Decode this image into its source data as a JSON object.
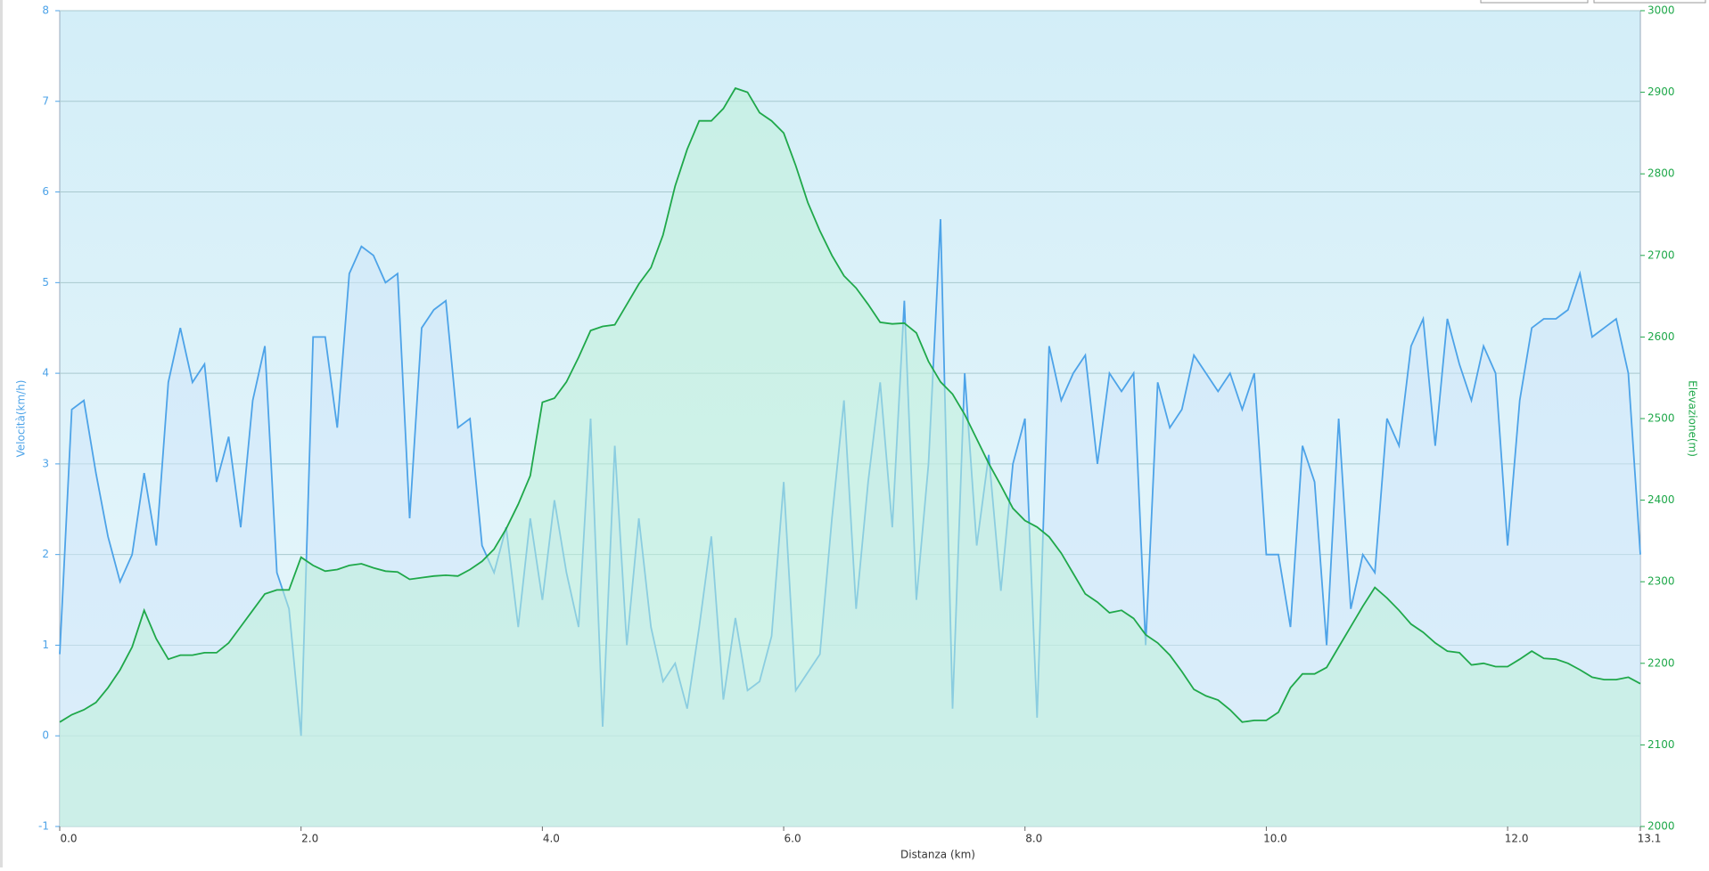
{
  "chart_data": {
    "type": "line",
    "xlabel": "Distanza  (km)",
    "ylabel": "Velocità(km/h)",
    "y2label": "Elevazione(m)",
    "xlim": [
      0,
      13.1
    ],
    "xticks": [
      {
        "value": 0,
        "label": "0.0"
      },
      {
        "value": 2,
        "label": "2.0"
      },
      {
        "value": 4,
        "label": "4.0"
      },
      {
        "value": 6,
        "label": "6.0"
      },
      {
        "value": 8,
        "label": "8.0"
      },
      {
        "value": 10,
        "label": "10.0"
      },
      {
        "value": 12,
        "label": "12.0"
      },
      {
        "value": 13.1,
        "label": "13.1"
      }
    ],
    "ylim": [
      -1,
      8
    ],
    "yticks": [
      -1,
      0,
      1,
      2,
      3,
      4,
      5,
      6,
      7,
      8
    ],
    "y2lim": [
      2000,
      3000
    ],
    "y2ticks": [
      2000,
      2100,
      2200,
      2300,
      2400,
      2500,
      2600,
      2700,
      2800,
      2900,
      3000
    ],
    "grid": true,
    "x": [
      0,
      0.1,
      0.2,
      0.3,
      0.4,
      0.5,
      0.6,
      0.7,
      0.8,
      0.9,
      1,
      1.1,
      1.2,
      1.3,
      1.4,
      1.5,
      1.6,
      1.7,
      1.8,
      1.9,
      2,
      2.1,
      2.2,
      2.3,
      2.4,
      2.5,
      2.6,
      2.7,
      2.8,
      2.9,
      3,
      3.1,
      3.2,
      3.3,
      3.4,
      3.5,
      3.6,
      3.7,
      3.8,
      3.9,
      4,
      4.1,
      4.2,
      4.3,
      4.4,
      4.5,
      4.6,
      4.7,
      4.8,
      4.9,
      5,
      5.1,
      5.2,
      5.3,
      5.4,
      5.5,
      5.6,
      5.7,
      5.8,
      5.9,
      6,
      6.1,
      6.2,
      6.3,
      6.4,
      6.5,
      6.6,
      6.7,
      6.8,
      6.9,
      7,
      7.1,
      7.2,
      7.3,
      7.4,
      7.5,
      7.6,
      7.7,
      7.8,
      7.9,
      8,
      8.1,
      8.2,
      8.3,
      8.4,
      8.5,
      8.6,
      8.7,
      8.8,
      8.9,
      9,
      9.1,
      9.2,
      9.3,
      9.4,
      9.5,
      9.6,
      9.7,
      9.8,
      9.9,
      10,
      10.1,
      10.2,
      10.3,
      10.4,
      10.5,
      10.6,
      10.7,
      10.8,
      10.9,
      11,
      11.1,
      11.2,
      11.3,
      11.4,
      11.5,
      11.6,
      11.7,
      11.8,
      11.9,
      12,
      12.1,
      12.2,
      12.3,
      12.4,
      12.5,
      12.6,
      12.7,
      12.8,
      12.9,
      13,
      13.1
    ],
    "series": [
      {
        "name": "Velocità",
        "color": "#4da3e8",
        "fill": "#cfe6fa",
        "axis": "y",
        "values": [
          0.9,
          3.6,
          3.7,
          2.9,
          2.2,
          1.7,
          2.0,
          2.9,
          2.1,
          3.9,
          4.5,
          3.9,
          4.1,
          2.8,
          3.3,
          2.3,
          3.7,
          4.3,
          1.8,
          1.4,
          0.0,
          4.4,
          4.4,
          3.4,
          5.1,
          5.4,
          5.3,
          5.0,
          5.1,
          2.4,
          4.5,
          4.7,
          4.8,
          3.4,
          3.5,
          2.1,
          1.8,
          2.3,
          1.2,
          2.4,
          1.5,
          2.6,
          1.8,
          1.2,
          3.5,
          0.1,
          3.2,
          1.0,
          2.4,
          1.2,
          0.6,
          0.8,
          0.3,
          1.2,
          2.2,
          0.4,
          1.3,
          0.5,
          0.6,
          1.1,
          2.8,
          0.5,
          0.7,
          0.9,
          2.4,
          3.7,
          1.4,
          2.8,
          3.9,
          2.3,
          4.8,
          1.5,
          3.0,
          5.7,
          0.3,
          4.0,
          2.1,
          3.1,
          1.6,
          3.0,
          3.5,
          0.2,
          4.3,
          3.7,
          4.0,
          4.2,
          3.0,
          4.0,
          3.8,
          4.0,
          1.0,
          3.9,
          3.4,
          3.6,
          4.2,
          4.0,
          3.8,
          4.0,
          3.6,
          4.0,
          2.0,
          2.0,
          1.2,
          3.2,
          2.8,
          1.0,
          3.5,
          1.4,
          2.0,
          1.8,
          3.5,
          3.2,
          4.3,
          4.6,
          3.2,
          4.6,
          4.1,
          3.7,
          4.3,
          4.0,
          2.1,
          3.7,
          4.5,
          4.6,
          4.6,
          4.7,
          5.1,
          4.4,
          4.5,
          4.6,
          4.0,
          2.0
        ]
      },
      {
        "name": "Elevazione",
        "color": "#1fa84a",
        "fill": "#bff0d8",
        "axis": "y2",
        "values": [
          2128,
          2137,
          2143,
          2152,
          2170,
          2192,
          2220,
          2265,
          2230,
          2205,
          2210,
          2210,
          2213,
          2213,
          2225,
          2245,
          2265,
          2285,
          2290,
          2290,
          2330,
          2320,
          2313,
          2315,
          2320,
          2322,
          2317,
          2313,
          2312,
          2303,
          2305,
          2307,
          2308,
          2307,
          2315,
          2325,
          2340,
          2365,
          2395,
          2430,
          2520,
          2525,
          2545,
          2575,
          2608,
          2613,
          2615,
          2640,
          2665,
          2685,
          2725,
          2785,
          2830,
          2865,
          2865,
          2880,
          2905,
          2900,
          2875,
          2865,
          2850,
          2810,
          2765,
          2730,
          2700,
          2675,
          2660,
          2640,
          2618,
          2616,
          2617,
          2605,
          2570,
          2545,
          2530,
          2505,
          2475,
          2445,
          2418,
          2390,
          2375,
          2367,
          2355,
          2335,
          2310,
          2285,
          2275,
          2262,
          2265,
          2255,
          2235,
          2225,
          2210,
          2190,
          2168,
          2160,
          2155,
          2143,
          2128,
          2130,
          2130,
          2140,
          2170,
          2187,
          2187,
          2195,
          2220,
          2245,
          2270,
          2293,
          2280,
          2265,
          2248,
          2238,
          2225,
          2215,
          2213,
          2198,
          2200,
          2196,
          2196,
          2205,
          2215,
          2206,
          2205,
          2200,
          2192,
          2183,
          2180,
          2180,
          2183,
          2175
        ]
      }
    ]
  }
}
